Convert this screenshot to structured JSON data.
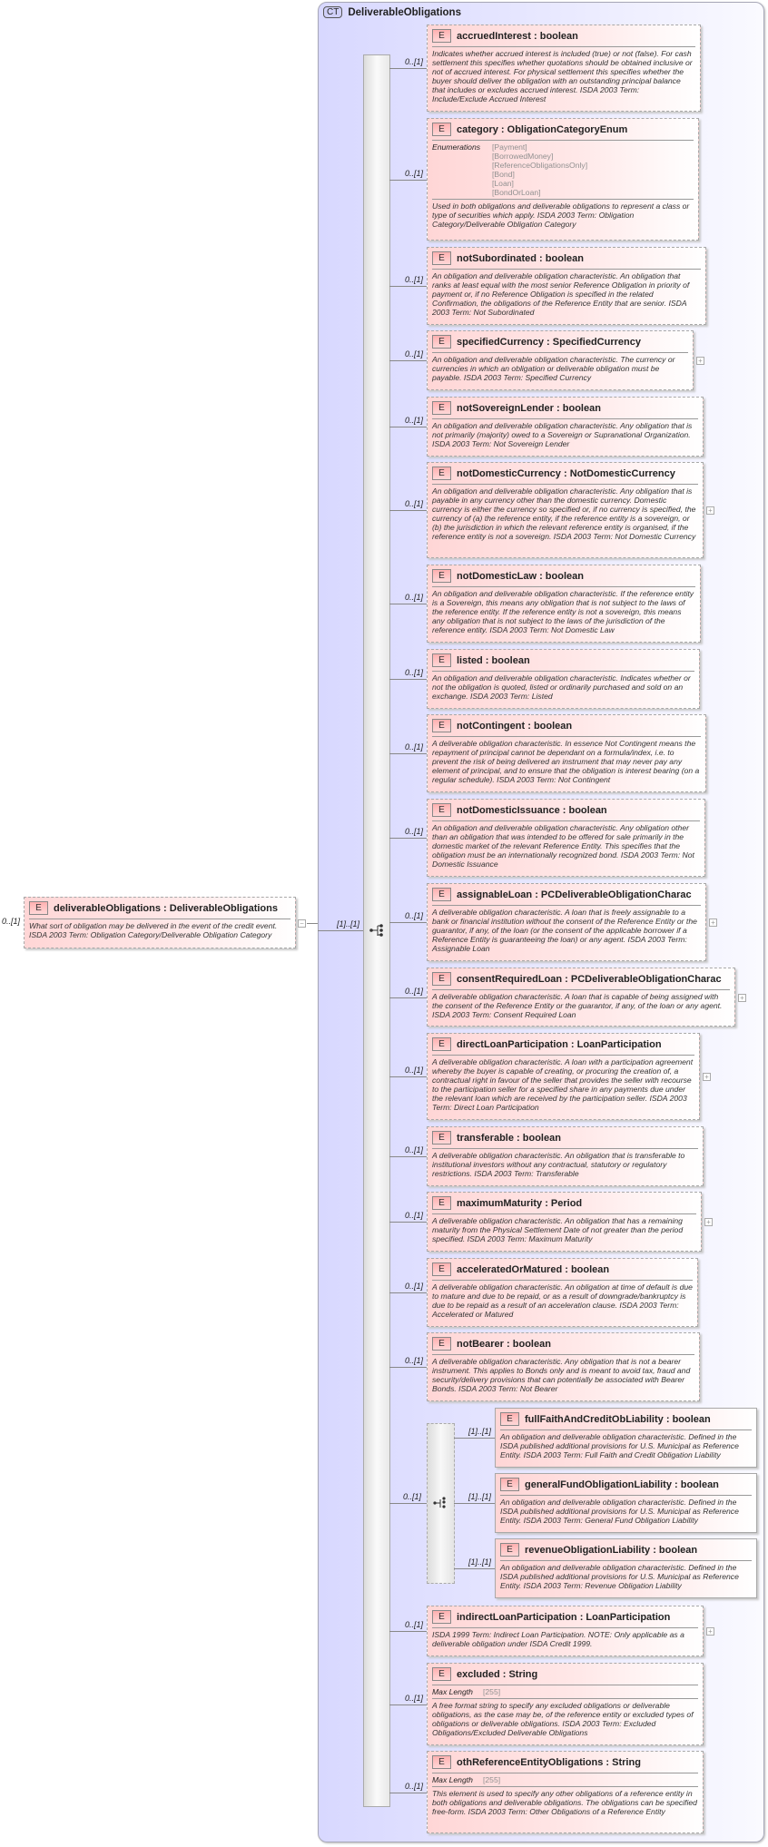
{
  "root": {
    "cardinality": "0..[1]",
    "name": "deliverableObligations",
    "type": "DeliverableObligations",
    "description": "What sort of obligation may be delivered in the event of the credit event. ISDA 2003 Term: Obligation Category/Deliverable Obligation Category",
    "badge": "E",
    "collapse_icon": "minus-icon"
  },
  "complex_type": {
    "badge": "CT",
    "name": "DeliverableObligations",
    "sequence_cardinality": "[1]..[1]"
  },
  "labels": {
    "separator": " : ",
    "enumerations": "Enumerations",
    "max_length": "Max Length",
    "element_badge": "E"
  },
  "elements": [
    {
      "name": "accruedInterest",
      "type": "boolean",
      "cardinality": "0..[1]",
      "description": "Indicates whether accrued interest is included (true) or not (false). For cash settlement this specifies whether quotations should be obtained inclusive or not of accrued interest. For physical settlement this specifies whether the buyer should deliver the obligation with an outstanding principal balance that includes or excludes accrued interest. ISDA 2003 Term: Include/Exclude Accrued Interest"
    },
    {
      "name": "category",
      "type": "ObligationCategoryEnum",
      "cardinality": "0..[1]",
      "enumerations": [
        "[Payment]",
        "[BorrowedMoney]",
        "[ReferenceObligationsOnly]",
        "[Bond]",
        "[Loan]",
        "[BondOrLoan]"
      ],
      "description": "Used in both obligations and deliverable obligations to represent a class or type of securities which apply. ISDA 2003 Term: Obligation Category/Deliverable Obligation Category"
    },
    {
      "name": "notSubordinated",
      "type": "boolean",
      "cardinality": "0..[1]",
      "description": "An obligation and deliverable obligation characteristic. An obligation that ranks at least equal with the most senior Reference Obligation in priority of payment or, if no Reference Obligation is specified in the related Confirmation, the obligations of the Reference Entity that are senior. ISDA 2003 Term: Not Subordinated"
    },
    {
      "name": "specifiedCurrency",
      "type": "SpecifiedCurrency",
      "cardinality": "0..[1]",
      "expandable": true,
      "description": "An obligation and deliverable obligation characteristic. The currency or currencies in which an obligation or deliverable obligation must be payable. ISDA 2003 Term: Specified Currency"
    },
    {
      "name": "notSovereignLender",
      "type": "boolean",
      "cardinality": "0..[1]",
      "description": "An obligation and deliverable obligation characteristic. Any obligation that is not primarily (majority) owed to a Sovereign or Supranational Organization. ISDA 2003 Term: Not Sovereign Lender"
    },
    {
      "name": "notDomesticCurrency",
      "type": "NotDomesticCurrency",
      "cardinality": "0..[1]",
      "expandable": true,
      "description": "An obligation and deliverable obligation characteristic. Any obligation that is payable in any currency other than the domestic currency. Domestic currency is either the currency so specified or, if no currency is specified, the currency of (a) the reference entity, if the reference entity is a sovereign, or (b) the jurisdiction in which the relevant reference entity is organised, if the reference entity is not a sovereign. ISDA 2003 Term: Not Domestic Currency"
    },
    {
      "name": "notDomesticLaw",
      "type": "boolean",
      "cardinality": "0..[1]",
      "description": "An obligation and deliverable obligation characteristic. If the reference entity is a Sovereign, this means any obligation that is not subject to the laws of the reference entity. If the reference entity is not a sovereign, this means any obligation that is not subject to the laws of the jurisdiction of the reference entity. ISDA 2003 Term: Not Domestic Law"
    },
    {
      "name": "listed",
      "type": "boolean",
      "cardinality": "0..[1]",
      "description": "An obligation and deliverable obligation characteristic. Indicates whether or not the obligation is quoted, listed or ordinarily purchased and sold on an exchange. ISDA 2003 Term: Listed"
    },
    {
      "name": "notContingent",
      "type": "boolean",
      "cardinality": "0..[1]",
      "description": "A deliverable obligation characteristic. In essence Not Contingent means the repayment of principal cannot be dependant on a formula/index, i.e. to prevent the risk of being delivered an instrument that may never pay any element of principal, and to ensure that the obligation is interest bearing (on a regular schedule). ISDA 2003 Term: Not Contingent"
    },
    {
      "name": "notDomesticIssuance",
      "type": "boolean",
      "cardinality": "0..[1]",
      "description": "An obligation and deliverable obligation characteristic. Any obligation other than an obligation that was intended to be offered for sale primarily in the domestic market of the relevant Reference Entity. This specifies that the obligation must be an internationally recognized bond. ISDA 2003 Term: Not Domestic Issuance"
    },
    {
      "name": "assignableLoan",
      "type": "PCDeliverableObligationCharac",
      "cardinality": "0..[1]",
      "expandable": true,
      "description": "A deliverable obligation characteristic. A loan that is freely assignable to a bank or financial institution without the consent of the Reference Entity or the guarantor, if any, of the loan (or the consent of the applicable borrower if a Reference Entity is guaranteeing the loan) or any agent. ISDA 2003 Term: Assignable Loan"
    },
    {
      "name": "consentRequiredLoan",
      "type": "PCDeliverableObligationCharac",
      "cardinality": "0..[1]",
      "expandable": true,
      "description": "A deliverable obligation characteristic. A loan that is capable of being assigned with the consent of the Reference Entity or the guarantor, if any, of the loan or any agent. ISDA 2003 Term: Consent Required Loan"
    },
    {
      "name": "directLoanParticipation",
      "type": "LoanParticipation",
      "cardinality": "0..[1]",
      "expandable": true,
      "description": "A deliverable obligation characteristic. A loan with a participation agreement whereby the buyer is capable of creating, or procuring the creation of, a contractual right in favour of the seller that provides the seller with recourse to the participation seller for a specified share in any payments due under the relevant loan which are received by the participation seller. ISDA 2003 Term: Direct Loan Participation"
    },
    {
      "name": "transferable",
      "type": "boolean",
      "cardinality": "0..[1]",
      "description": "A deliverable obligation characteristic. An obligation that is transferable to institutional investors without any contractual, statutory or regulatory restrictions. ISDA 2003 Term: Transferable"
    },
    {
      "name": "maximumMaturity",
      "type": "Period",
      "cardinality": "0..[1]",
      "expandable": true,
      "description": "A deliverable obligation characteristic. An obligation that has a remaining maturity from the Physical Settlement Date of not greater than the period specified. ISDA 2003 Term: Maximum Maturity"
    },
    {
      "name": "acceleratedOrMatured",
      "type": "boolean",
      "cardinality": "0..[1]",
      "description": "A deliverable obligation characteristic. An obligation at time of default is due to mature and due to be repaid, or as a result of downgrade/bankruptcy is due to be repaid as a result of an acceleration clause. ISDA 2003 Term: Accelerated or Matured"
    },
    {
      "name": "notBearer",
      "type": "boolean",
      "cardinality": "0..[1]",
      "description": "A deliverable obligation characteristic. Any obligation that is not a bearer instrument. This applies to Bonds only and is meant to avoid tax, fraud and security/delivery provisions that can potentially be associated with Bearer Bonds. ISDA 2003 Term: Not Bearer"
    },
    {
      "name": "indirectLoanParticipation",
      "type": "LoanParticipation",
      "cardinality": "0..[1]",
      "expandable": true,
      "description": "ISDA 1999 Term: Indirect Loan Participation. NOTE: Only applicable as a deliverable obligation under ISDA Credit 1999."
    },
    {
      "name": "excluded",
      "type": "String",
      "cardinality": "0..[1]",
      "max_length": "[255]",
      "description": "A free format string to specify any excluded obligations or deliverable obligations, as the case may be, of the reference entity or excluded types of obligations or deliverable obligations. ISDA 2003 Term: Excluded Obligations/Excluded Deliverable Obligations"
    },
    {
      "name": "othReferenceEntityObligations",
      "type": "String",
      "cardinality": "0..[1]",
      "max_length": "[255]",
      "description": "This element is used to specify any other obligations of a reference entity in both obligations and deliverable obligations. The obligations can be specified free-form. ISDA 2003 Term: Other Obligations of a Reference Entity"
    }
  ],
  "choice": {
    "cardinality": "0..[1]",
    "elements": [
      {
        "name": "fullFaithAndCreditObLiability",
        "type": "boolean",
        "cardinality": "[1]..[1]",
        "description": "An obligation and deliverable obligation characteristic. Defined in the ISDA published additional provisions for U.S. Municipal as Reference Entity. ISDA 2003 Term: Full Faith and Credit Obligation Liability"
      },
      {
        "name": "generalFundObligationLiability",
        "type": "boolean",
        "cardinality": "[1]..[1]",
        "description": "An obligation and deliverable obligation characteristic. Defined in the ISDA published additional provisions for U.S. Municipal as Reference Entity. ISDA 2003 Term: General Fund Obligation Liability"
      },
      {
        "name": "revenueObligationLiability",
        "type": "boolean",
        "cardinality": "[1]..[1]",
        "description": "An obligation and deliverable obligation characteristic. Defined in the ISDA published additional provisions for U.S. Municipal as Reference Entity. ISDA 2003 Term: Revenue Obligation Liability"
      }
    ]
  }
}
